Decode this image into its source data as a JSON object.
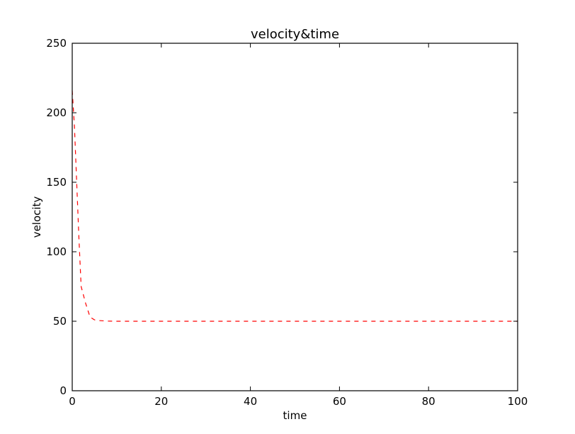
{
  "chart_data": {
    "type": "line",
    "title": "velocity&time",
    "xlabel": "time",
    "ylabel": "velocity",
    "xlim": [
      0,
      100
    ],
    "ylim": [
      0,
      250
    ],
    "x_ticks": [
      "0",
      "20",
      "40",
      "60",
      "80",
      "100"
    ],
    "y_ticks": [
      "0",
      "50",
      "100",
      "150",
      "200",
      "250"
    ],
    "grid": false,
    "series": [
      {
        "color": "#ff0000",
        "line_style": "dashed",
        "x": [
          0,
          0.5,
          1,
          1.5,
          2,
          3,
          4,
          5,
          6,
          8,
          10,
          20,
          40,
          60,
          80,
          100
        ],
        "y": [
          216,
          190,
          150,
          110,
          75,
          63,
          53,
          51,
          50.5,
          50.1,
          50,
          50,
          50,
          50,
          50,
          50
        ]
      }
    ]
  }
}
